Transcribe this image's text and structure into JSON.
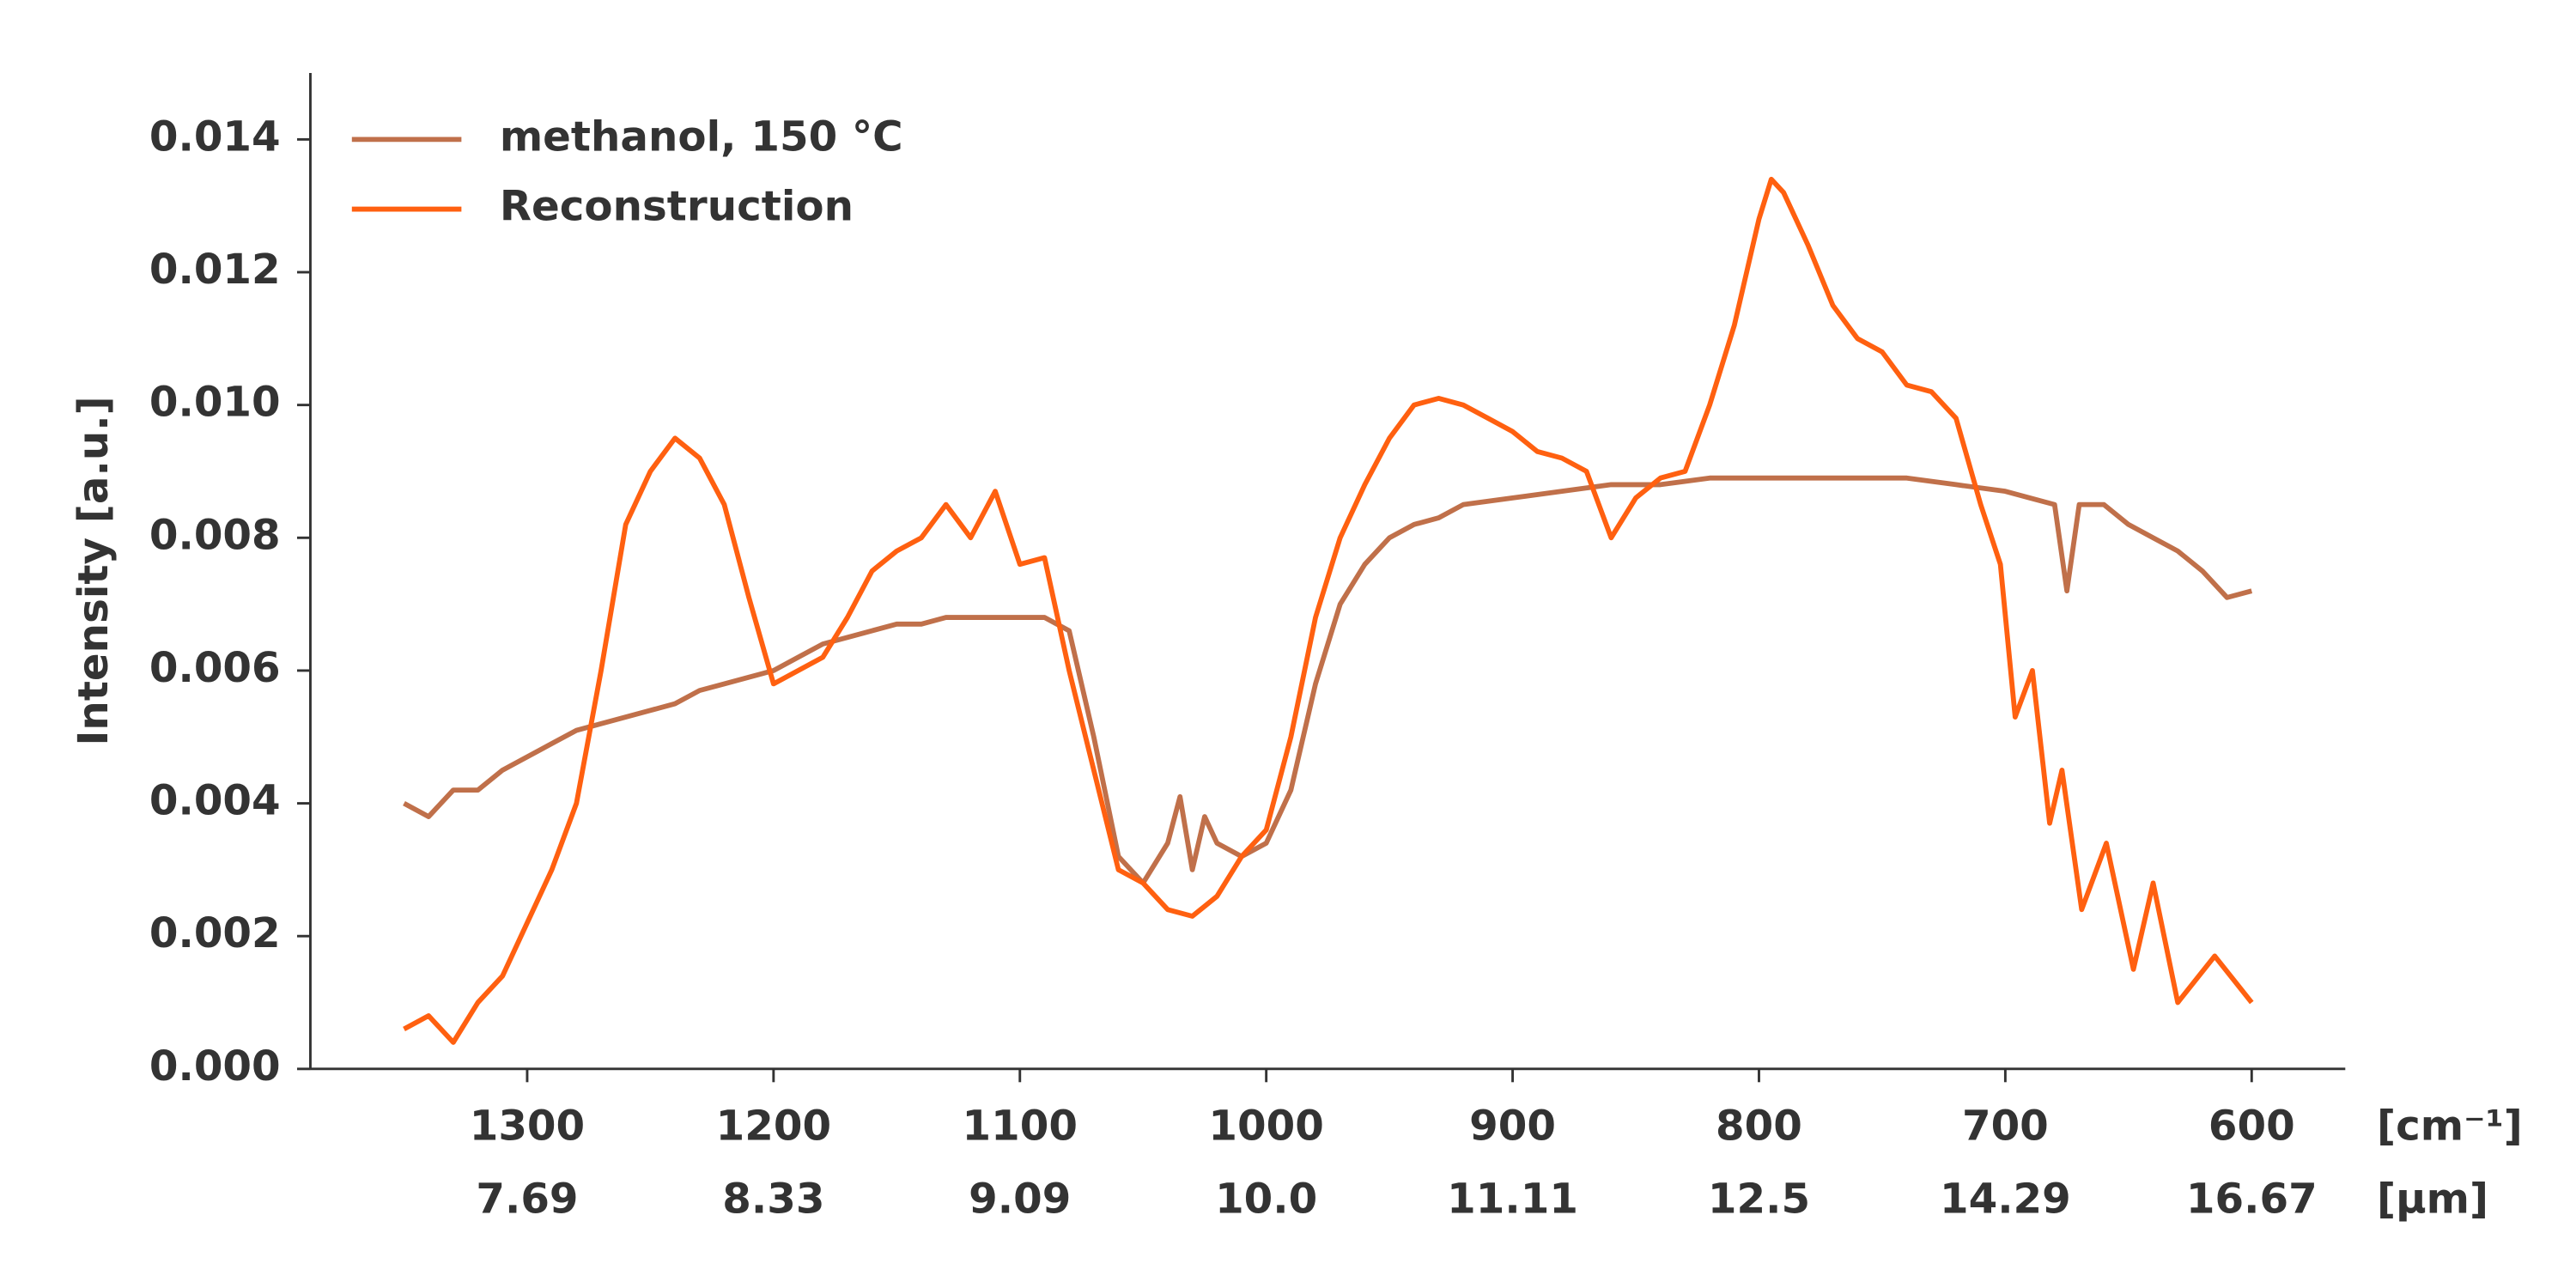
{
  "chart_data": {
    "type": "line",
    "ylabel": "Intensity [a.u.]",
    "xlabel": "[cm⁻¹]",
    "x2label": "[µm]",
    "xlim": [
      1388,
      562
    ],
    "ylim": [
      0,
      0.015
    ],
    "xticks": [
      1300,
      1200,
      1100,
      1000,
      900,
      800,
      700,
      600
    ],
    "x2ticklabels": [
      "7.69",
      "8.33",
      "9.09",
      "10.0",
      "11.11",
      "12.5",
      "14.29",
      "16.67"
    ],
    "yticks": [
      {
        "value": 0,
        "label": "0.000"
      },
      {
        "value": 0.002,
        "label": "0.002"
      },
      {
        "value": 0.004,
        "label": "0.004"
      },
      {
        "value": 0.006,
        "label": "0.006"
      },
      {
        "value": 0.008,
        "label": "0.008"
      },
      {
        "value": 0.01,
        "label": "0.010"
      },
      {
        "value": 0.012,
        "label": "0.012"
      },
      {
        "value": 0.014,
        "label": "0.014"
      }
    ],
    "legend": "upper left",
    "series": [
      {
        "name": "methanol, 150 °C",
        "color": "#c0704a",
        "x": [
          1350,
          1340,
          1330,
          1320,
          1310,
          1300,
          1290,
          1280,
          1270,
          1260,
          1250,
          1240,
          1230,
          1220,
          1210,
          1200,
          1190,
          1180,
          1170,
          1160,
          1150,
          1140,
          1130,
          1120,
          1110,
          1100,
          1090,
          1080,
          1070,
          1060,
          1050,
          1040,
          1035,
          1030,
          1025,
          1020,
          1010,
          1000,
          990,
          980,
          970,
          960,
          950,
          940,
          930,
          920,
          900,
          880,
          860,
          840,
          820,
          800,
          780,
          760,
          740,
          720,
          700,
          690,
          680,
          675,
          670,
          660,
          650,
          640,
          630,
          620,
          610,
          600
        ],
        "values": [
          0.004,
          0.0038,
          0.0042,
          0.0042,
          0.0045,
          0.0047,
          0.0049,
          0.0051,
          0.0052,
          0.0053,
          0.0054,
          0.0055,
          0.0057,
          0.0058,
          0.0059,
          0.006,
          0.0062,
          0.0064,
          0.0065,
          0.0066,
          0.0067,
          0.0067,
          0.0068,
          0.0068,
          0.0068,
          0.0068,
          0.0068,
          0.0066,
          0.005,
          0.0032,
          0.0028,
          0.0034,
          0.0041,
          0.003,
          0.0038,
          0.0034,
          0.0032,
          0.0034,
          0.0042,
          0.0058,
          0.007,
          0.0076,
          0.008,
          0.0082,
          0.0083,
          0.0085,
          0.0086,
          0.0087,
          0.0088,
          0.0088,
          0.0089,
          0.0089,
          0.0089,
          0.0089,
          0.0089,
          0.0088,
          0.0087,
          0.0086,
          0.0085,
          0.0072,
          0.0085,
          0.0085,
          0.0082,
          0.008,
          0.0078,
          0.0075,
          0.0071,
          0.0072
        ]
      },
      {
        "name": "Reconstruction",
        "color": "#ff6010",
        "x": [
          1350,
          1340,
          1330,
          1320,
          1310,
          1300,
          1290,
          1280,
          1270,
          1260,
          1250,
          1240,
          1230,
          1220,
          1210,
          1200,
          1190,
          1180,
          1170,
          1160,
          1150,
          1140,
          1130,
          1120,
          1110,
          1100,
          1090,
          1080,
          1070,
          1060,
          1050,
          1040,
          1030,
          1020,
          1010,
          1000,
          990,
          980,
          970,
          960,
          950,
          940,
          930,
          920,
          910,
          900,
          890,
          880,
          870,
          860,
          850,
          840,
          830,
          820,
          810,
          800,
          795,
          790,
          780,
          770,
          760,
          750,
          740,
          730,
          720,
          710,
          702,
          696,
          689,
          682,
          677,
          669,
          659,
          648,
          640,
          630,
          615,
          600
        ],
        "values": [
          0.0006,
          0.0008,
          0.0004,
          0.001,
          0.0014,
          0.0022,
          0.003,
          0.004,
          0.006,
          0.0082,
          0.009,
          0.0095,
          0.0092,
          0.0085,
          0.0071,
          0.0058,
          0.006,
          0.0062,
          0.0068,
          0.0075,
          0.0078,
          0.008,
          0.0085,
          0.008,
          0.0087,
          0.0076,
          0.0077,
          0.006,
          0.0045,
          0.003,
          0.0028,
          0.0024,
          0.0023,
          0.0026,
          0.0032,
          0.0036,
          0.005,
          0.0068,
          0.008,
          0.0088,
          0.0095,
          0.01,
          0.0101,
          0.01,
          0.0098,
          0.0096,
          0.0093,
          0.0092,
          0.009,
          0.008,
          0.0086,
          0.0089,
          0.009,
          0.01,
          0.0112,
          0.0128,
          0.0134,
          0.0132,
          0.0124,
          0.0115,
          0.011,
          0.0108,
          0.0103,
          0.0102,
          0.0098,
          0.0085,
          0.0076,
          0.0053,
          0.006,
          0.0037,
          0.0045,
          0.0024,
          0.0034,
          0.0015,
          0.0028,
          0.001,
          0.0017,
          0.001
        ]
      }
    ]
  }
}
